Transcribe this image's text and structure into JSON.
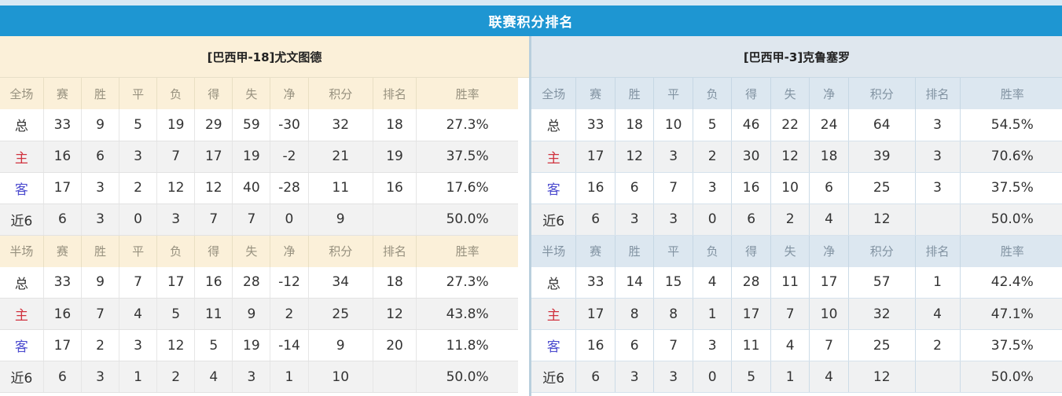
{
  "title": "联赛积分排名",
  "colors": {
    "title_bar_blue": "#1e96d2",
    "left_theme_cream": "#fbf0d9",
    "right_theme_blue": "#dce7f0",
    "points_red": "#f5402e",
    "rank_blue": "#3084cc",
    "winrate_red": "#e83a2c",
    "home_label_red": "#d0323e",
    "away_label_blue": "#4d4ccf"
  },
  "teams": [
    {
      "name": "[巴西甲-18]尤文图德",
      "tables": [
        {
          "scope_label": "全场",
          "headers": [
            "赛",
            "胜",
            "平",
            "负",
            "得",
            "失",
            "净",
            "积分",
            "排名",
            "胜率"
          ],
          "rows": [
            {
              "label": "总",
              "cells": [
                "33",
                "9",
                "5",
                "19",
                "29",
                "59",
                "-30",
                "32",
                "18",
                "27.3%"
              ]
            },
            {
              "label": "主",
              "cells": [
                "16",
                "6",
                "3",
                "7",
                "17",
                "19",
                "-2",
                "21",
                "19",
                "37.5%"
              ]
            },
            {
              "label": "客",
              "cells": [
                "17",
                "3",
                "2",
                "12",
                "12",
                "40",
                "-28",
                "11",
                "16",
                "17.6%"
              ]
            },
            {
              "label": "近6",
              "cells": [
                "6",
                "3",
                "0",
                "3",
                "7",
                "7",
                "0",
                "9",
                "",
                "50.0%"
              ]
            }
          ]
        },
        {
          "scope_label": "半场",
          "headers": [
            "赛",
            "胜",
            "平",
            "负",
            "得",
            "失",
            "净",
            "积分",
            "排名",
            "胜率"
          ],
          "rows": [
            {
              "label": "总",
              "cells": [
                "33",
                "9",
                "7",
                "17",
                "16",
                "28",
                "-12",
                "34",
                "18",
                "27.3%"
              ]
            },
            {
              "label": "主",
              "cells": [
                "16",
                "7",
                "4",
                "5",
                "11",
                "9",
                "2",
                "25",
                "12",
                "43.8%"
              ]
            },
            {
              "label": "客",
              "cells": [
                "17",
                "2",
                "3",
                "12",
                "5",
                "19",
                "-14",
                "9",
                "20",
                "11.8%"
              ]
            },
            {
              "label": "近6",
              "cells": [
                "6",
                "3",
                "1",
                "2",
                "4",
                "3",
                "1",
                "10",
                "",
                "50.0%"
              ]
            }
          ]
        }
      ]
    },
    {
      "name": "[巴西甲-3]克鲁塞罗",
      "tables": [
        {
          "scope_label": "全场",
          "headers": [
            "赛",
            "胜",
            "平",
            "负",
            "得",
            "失",
            "净",
            "积分",
            "排名",
            "胜率"
          ],
          "rows": [
            {
              "label": "总",
              "cells": [
                "33",
                "18",
                "10",
                "5",
                "46",
                "22",
                "24",
                "64",
                "3",
                "54.5%"
              ]
            },
            {
              "label": "主",
              "cells": [
                "17",
                "12",
                "3",
                "2",
                "30",
                "12",
                "18",
                "39",
                "3",
                "70.6%"
              ]
            },
            {
              "label": "客",
              "cells": [
                "16",
                "6",
                "7",
                "3",
                "16",
                "10",
                "6",
                "25",
                "3",
                "37.5%"
              ]
            },
            {
              "label": "近6",
              "cells": [
                "6",
                "3",
                "3",
                "0",
                "6",
                "2",
                "4",
                "12",
                "",
                "50.0%"
              ]
            }
          ]
        },
        {
          "scope_label": "半场",
          "headers": [
            "赛",
            "胜",
            "平",
            "负",
            "得",
            "失",
            "净",
            "积分",
            "排名",
            "胜率"
          ],
          "rows": [
            {
              "label": "总",
              "cells": [
                "33",
                "14",
                "15",
                "4",
                "28",
                "11",
                "17",
                "57",
                "1",
                "42.4%"
              ]
            },
            {
              "label": "主",
              "cells": [
                "17",
                "8",
                "8",
                "1",
                "17",
                "7",
                "10",
                "32",
                "4",
                "47.1%"
              ]
            },
            {
              "label": "客",
              "cells": [
                "16",
                "6",
                "7",
                "3",
                "11",
                "4",
                "7",
                "25",
                "2",
                "37.5%"
              ]
            },
            {
              "label": "近6",
              "cells": [
                "6",
                "3",
                "3",
                "0",
                "5",
                "1",
                "4",
                "12",
                "",
                "50.0%"
              ]
            }
          ]
        }
      ]
    }
  ]
}
